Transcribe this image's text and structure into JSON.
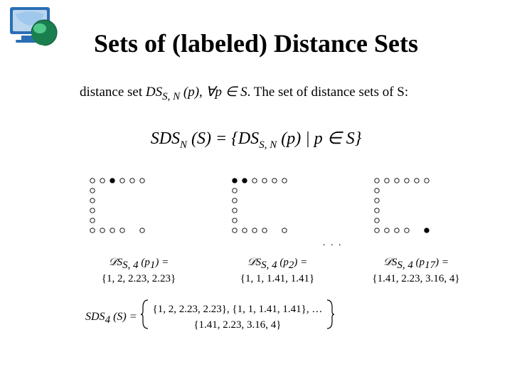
{
  "title": "Sets of (labeled) Distance Sets",
  "intro_left": "distance set",
  "intro_mid_math": "DS<sub>S, N</sub> (p), ∀p ∈ S",
  "intro_right": ". The set of distance sets of S:",
  "main_eq": "SDS<sub>N</sub> (S) = { DS<sub>S, N</sub> (p) | p ∈ S }",
  "grids": {
    "rows": 6,
    "cols": 6,
    "cell": 14,
    "circle_r": 3.2,
    "circle_stroke": "#000000",
    "circle_fill": "#ffffff",
    "filled_fill": "#000000",
    "pattern_open": [
      [
        0,
        0
      ],
      [
        0,
        1
      ],
      [
        0,
        2
      ],
      [
        0,
        3
      ],
      [
        0,
        4
      ],
      [
        0,
        5
      ],
      [
        1,
        0
      ],
      [
        2,
        0
      ],
      [
        3,
        0
      ],
      [
        4,
        0
      ],
      [
        5,
        0
      ],
      [
        5,
        1
      ],
      [
        5,
        2
      ],
      [
        5,
        3
      ],
      [
        5,
        5
      ]
    ],
    "blocks": [
      {
        "filled": [
          [
            0,
            2
          ]
        ]
      },
      {
        "filled": [
          [
            0,
            0
          ],
          [
            0,
            1
          ]
        ]
      },
      {
        "filled": [
          [
            5,
            5
          ]
        ]
      }
    ]
  },
  "ellipsis": ". . .",
  "ds": [
    {
      "expr": "𝒟S<sub>S, 4</sub> (p<sub>1</sub>) =",
      "set": "{1, 2, 2.23, 2.23}"
    },
    {
      "expr": "𝒟S<sub>S, 4</sub> (p<sub>2</sub>) =",
      "set": "{1, 1, 1.41, 1.41}"
    },
    {
      "expr": "𝒟S<sub>S, 4</sub> (p<sub>17</sub>) =",
      "set": "{1.41, 2.23, 3.16, 4}"
    }
  ],
  "sds": {
    "lead": "SDS<sub>4</sub> (S) = ",
    "line1": "{1, 2, 2.23, 2.23}, {1, 1, 1.41, 1.41}, …",
    "line2": "{1.41, 2.23, 3.16, 4}"
  },
  "colors": {
    "logo_monitor": "#2a6fb5",
    "logo_screen": "#bcd6ef",
    "logo_globe": "#1a7f4f",
    "logo_globe_hi": "#4fc98a"
  }
}
